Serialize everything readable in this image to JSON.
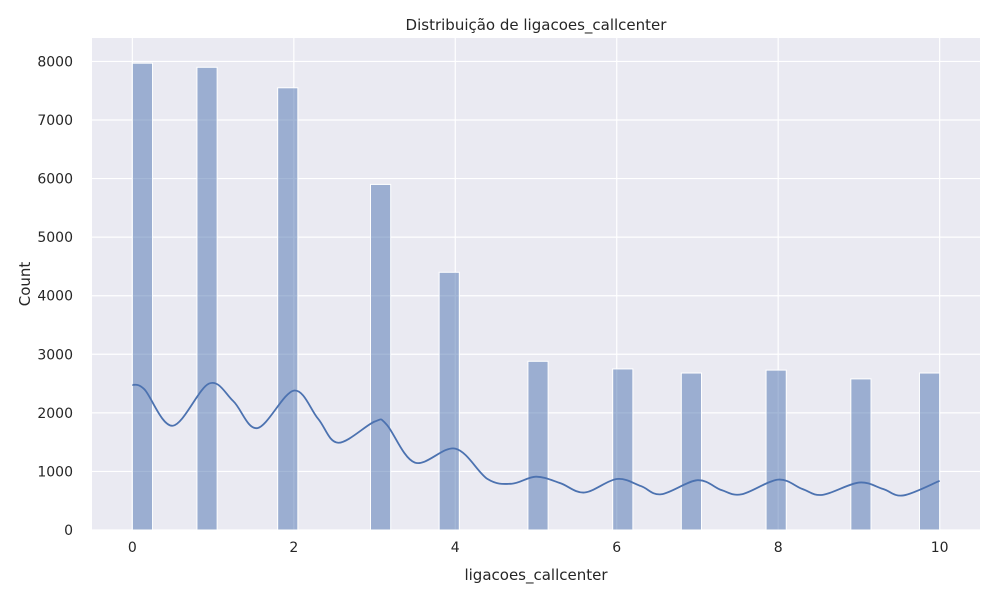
{
  "chart_data": {
    "type": "bar",
    "title": "Distribuição de ligacoes_callcenter",
    "xlabel": "ligacoes_callcenter",
    "ylabel": "Count",
    "xlim": [
      -0.5,
      10.5
    ],
    "ylim": [
      0,
      8400
    ],
    "x_ticks": [
      0,
      2,
      4,
      6,
      8,
      10
    ],
    "y_ticks": [
      0,
      1000,
      2000,
      3000,
      4000,
      5000,
      6000,
      7000,
      8000
    ],
    "grid": true,
    "bars": [
      {
        "x0": 0.0,
        "x1": 0.25,
        "count": 7970
      },
      {
        "x0": 0.8,
        "x1": 1.05,
        "count": 7900
      },
      {
        "x0": 1.8,
        "x1": 2.05,
        "count": 7550
      },
      {
        "x0": 2.95,
        "x1": 3.2,
        "count": 5900
      },
      {
        "x0": 3.8,
        "x1": 4.05,
        "count": 4400
      },
      {
        "x0": 4.9,
        "x1": 5.15,
        "count": 2880
      },
      {
        "x0": 5.95,
        "x1": 6.2,
        "count": 2750
      },
      {
        "x0": 6.8,
        "x1": 7.05,
        "count": 2680
      },
      {
        "x0": 7.85,
        "x1": 8.1,
        "count": 2730
      },
      {
        "x0": 8.9,
        "x1": 9.15,
        "count": 2580
      },
      {
        "x0": 9.75,
        "x1": 10.0,
        "count": 2680
      }
    ],
    "kde": {
      "x": [
        0,
        0.15,
        0.5,
        0.95,
        1.25,
        1.55,
        2.0,
        2.3,
        2.55,
        3.0,
        3.15,
        3.5,
        4.0,
        4.4,
        4.7,
        5.0,
        5.3,
        5.6,
        6.0,
        6.3,
        6.55,
        7.0,
        7.3,
        7.55,
        8.0,
        8.3,
        8.55,
        9.0,
        9.3,
        9.55,
        10.0
      ],
      "y": [
        2480,
        2400,
        1780,
        2500,
        2200,
        1740,
        2380,
        1900,
        1490,
        1850,
        1800,
        1150,
        1390,
        870,
        790,
        910,
        800,
        640,
        870,
        750,
        610,
        850,
        680,
        610,
        860,
        700,
        600,
        810,
        700,
        590,
        840
      ]
    },
    "colors": {
      "bar": "#4c72b0",
      "kde": "#4c72b0",
      "plot_background": "#eaeaf2",
      "grid": "#ffffff"
    }
  }
}
